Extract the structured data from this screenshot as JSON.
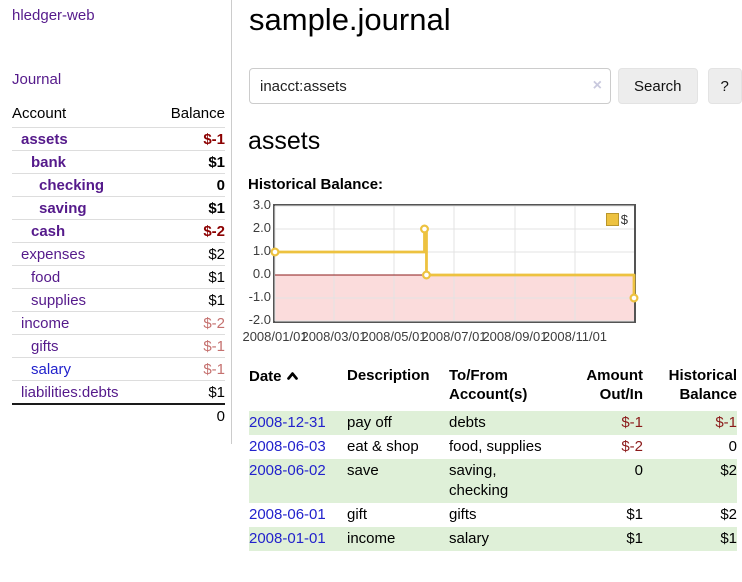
{
  "app": {
    "brand": "hledger-web"
  },
  "nav": {
    "journal": "Journal"
  },
  "sidebar": {
    "header": {
      "account": "Account",
      "balance": "Balance"
    },
    "accounts": [
      {
        "name": "assets",
        "balance": "$-1",
        "indent": 1,
        "bold": true,
        "balance_style": "negative-strong"
      },
      {
        "name": "bank",
        "balance": "$1",
        "indent": 2,
        "bold": true,
        "balance_style": "normal"
      },
      {
        "name": "checking",
        "balance": "0",
        "indent": 3,
        "bold": true,
        "balance_style": "normal"
      },
      {
        "name": "saving",
        "balance": "$1",
        "indent": 3,
        "bold": true,
        "balance_style": "normal"
      },
      {
        "name": "cash",
        "balance": "$-2",
        "indent": 2,
        "bold": true,
        "balance_style": "negative-strong"
      },
      {
        "name": "expenses",
        "balance": "$2",
        "indent": 1,
        "bold": false,
        "balance_style": "normal"
      },
      {
        "name": "food",
        "balance": "$1",
        "indent": 2,
        "bold": false,
        "balance_style": "normal"
      },
      {
        "name": "supplies",
        "balance": "$1",
        "indent": 2,
        "bold": false,
        "balance_style": "normal"
      },
      {
        "name": "income",
        "balance": "$-2",
        "indent": 1,
        "bold": false,
        "balance_style": "negative-muted"
      },
      {
        "name": "gifts",
        "balance": "$-1",
        "indent": 2,
        "bold": false,
        "balance_style": "negative-muted"
      },
      {
        "name": "salary",
        "balance": "$-1",
        "indent": 2,
        "bold": false,
        "balance_style": "negative-muted",
        "link_color": "blue"
      },
      {
        "name": "liabilities:debts",
        "balance": "$1",
        "indent": 1,
        "bold": false,
        "balance_style": "normal"
      }
    ],
    "total": "0"
  },
  "main": {
    "title": "sample.journal",
    "search": {
      "value": "inacct:assets",
      "clear_icon": "×",
      "search_button": "Search",
      "help_button": "?"
    },
    "account_title": "assets",
    "chart_title": "Historical Balance:"
  },
  "chart_data": {
    "type": "line",
    "title": "Historical Balance",
    "step": true,
    "series": [
      {
        "name": "$",
        "color": "#edc240",
        "points": [
          {
            "date": "2008-01-01",
            "value": 1
          },
          {
            "date": "2008-06-01",
            "value": 2
          },
          {
            "date": "2008-06-03",
            "value": 0
          },
          {
            "date": "2008-12-31",
            "value": -1
          }
        ]
      }
    ],
    "xrange": [
      "2008-01-01",
      "2008-12-31"
    ],
    "ylim": [
      -2,
      3
    ],
    "yticks": [
      "3.0",
      "2.0",
      "1.0",
      "0.0",
      "-1.0",
      "-2.0"
    ],
    "xticks": [
      "2008/01/01",
      "2008/03/01",
      "2008/05/01",
      "2008/07/01",
      "2008/09/01",
      "2008/11/01"
    ],
    "grid": true,
    "legend": [
      {
        "label": "$",
        "color": "#edc240"
      }
    ],
    "legend_position": "top-right",
    "negative_region_color": "#fbdcdc",
    "zero_line_color": "#8b1a1a",
    "grid_color": "#e3e3e3"
  },
  "register": {
    "columns": [
      "Date",
      "Description",
      "To/From Account(s)",
      "Amount Out/In",
      "Historical Balance"
    ],
    "rows": [
      {
        "date": "2008-12-31",
        "description": "pay off",
        "accounts": "debts",
        "amount": "$-1",
        "balance": "$-1",
        "amount_negative": true,
        "balance_negative": true
      },
      {
        "date": "2008-06-03",
        "description": "eat & shop",
        "accounts": "food, supplies",
        "amount": "$-2",
        "balance": "0",
        "amount_negative": true,
        "balance_negative": false
      },
      {
        "date": "2008-06-02",
        "description": "save",
        "accounts": "saving, checking",
        "amount": "0",
        "balance": "$2",
        "amount_negative": false,
        "balance_negative": false
      },
      {
        "date": "2008-06-01",
        "description": "gift",
        "accounts": "gifts",
        "amount": "$1",
        "balance": "$2",
        "amount_negative": false,
        "balance_negative": false
      },
      {
        "date": "2008-01-01",
        "description": "income",
        "accounts": "salary",
        "amount": "$1",
        "balance": "$1",
        "amount_negative": false,
        "balance_negative": false
      }
    ]
  },
  "colors": {
    "link_purple": "#551a8b",
    "link_blue": "#2222cc",
    "negative_strong": "#8b0000",
    "negative_muted": "#c5716f",
    "row_stripe_green": "#dff0d8",
    "chart_line_yellow": "#edc240"
  }
}
